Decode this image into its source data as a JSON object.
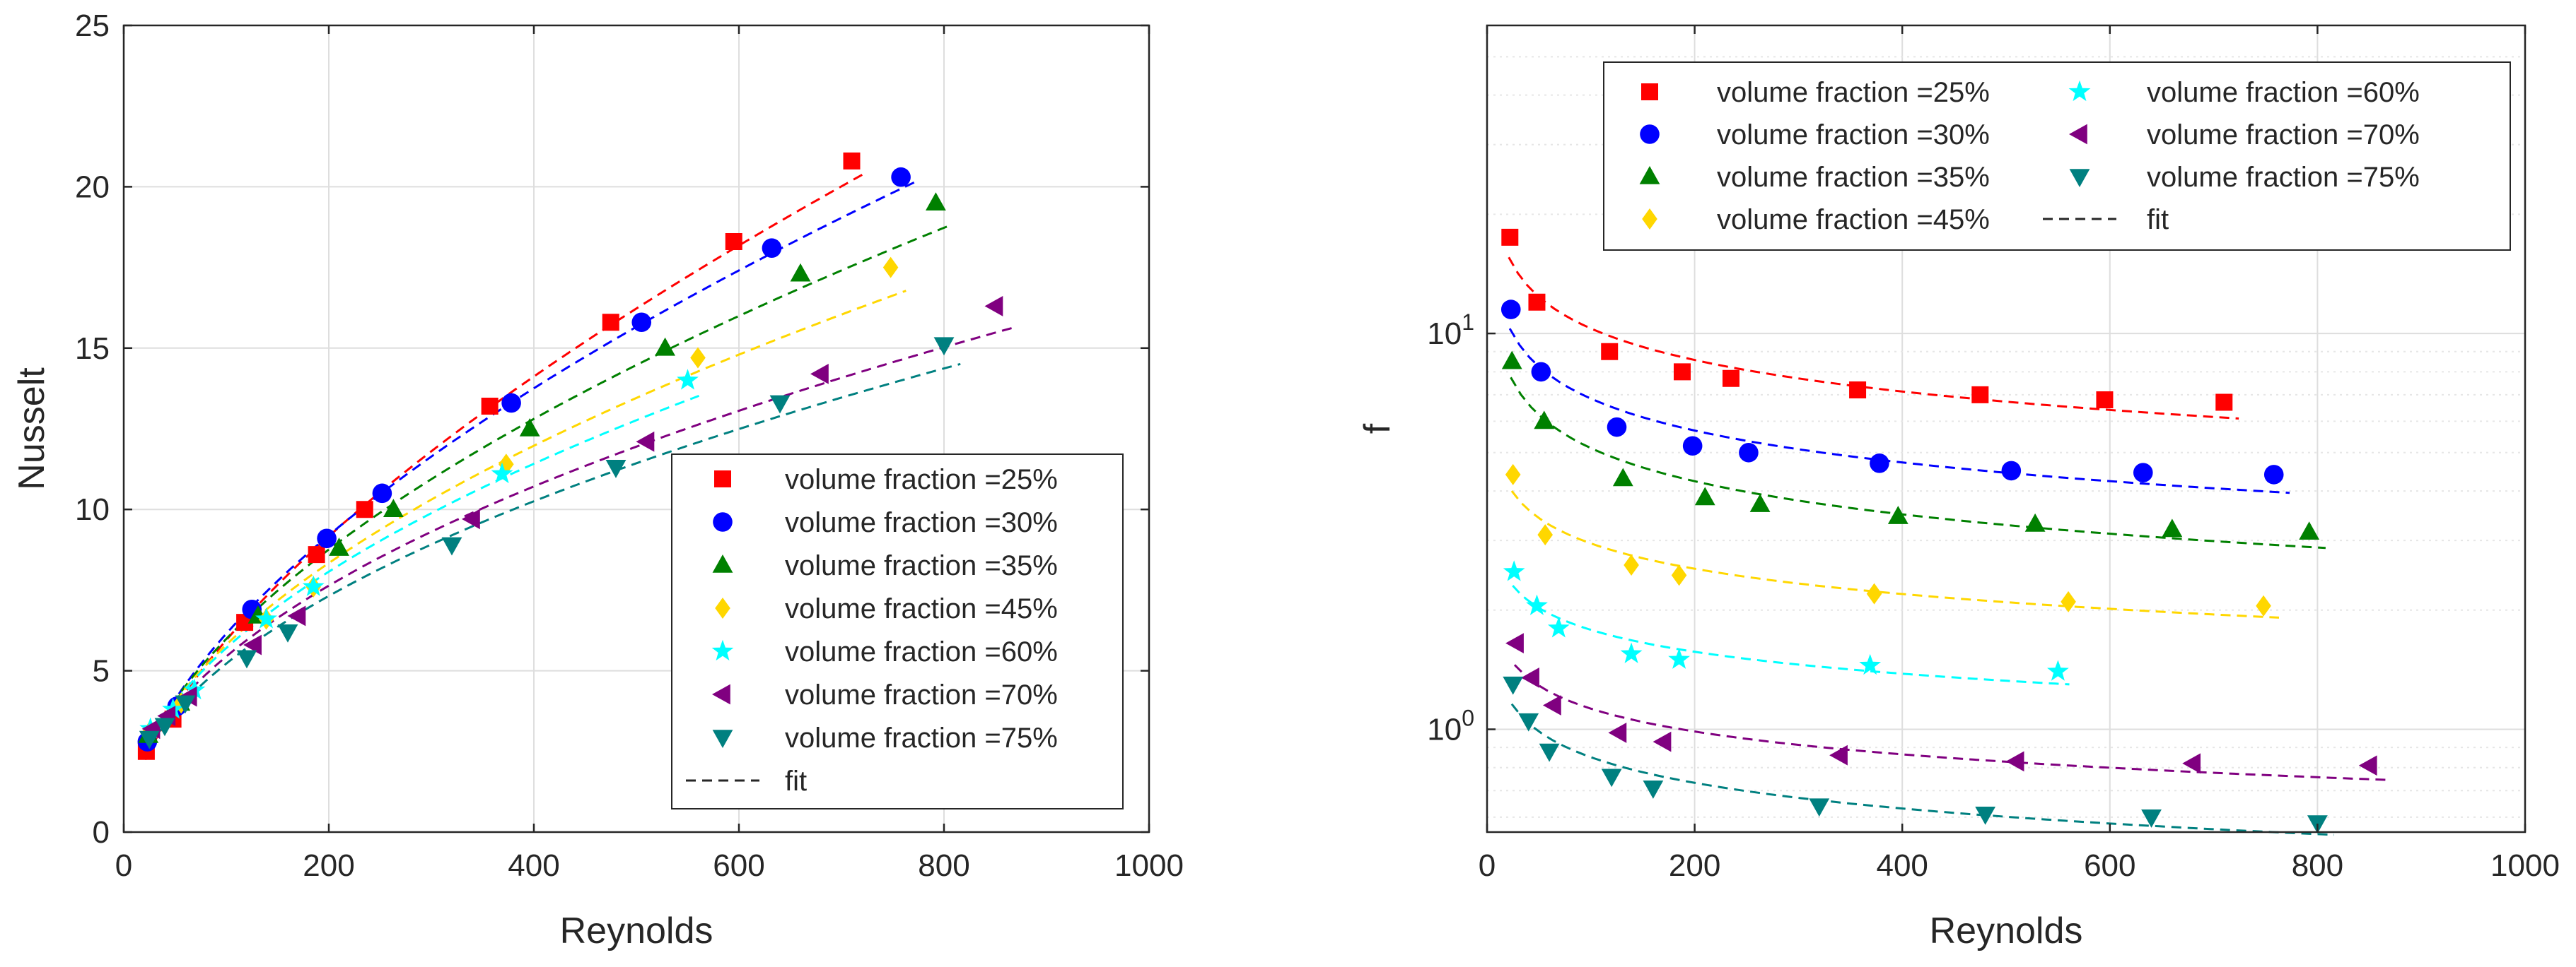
{
  "chart_data": [
    {
      "type": "scatter",
      "title": "",
      "xlabel": "Reynolds",
      "ylabel": "Nusselt",
      "xlim": [
        0,
        1000
      ],
      "ylim": [
        0,
        25
      ],
      "xscale": "linear",
      "yscale": "linear",
      "grid": true,
      "legend_position": "bottom-right",
      "x_ticks": [
        "0",
        "200",
        "400",
        "600",
        "800",
        "1000"
      ],
      "y_ticks": [
        "0",
        "5",
        "10",
        "15",
        "20",
        "25"
      ],
      "fit_label": "fit",
      "series": [
        {
          "name": "volume fraction =25%",
          "color": "#ff0000",
          "marker": "square",
          "x": [
            22,
            48,
            118,
            188,
            235,
            357,
            475,
            595,
            710
          ],
          "y": [
            2.5,
            3.5,
            6.5,
            8.6,
            10.0,
            13.2,
            15.8,
            18.3,
            20.8
          ]
        },
        {
          "name": "volume fraction =30%",
          "color": "#0000ff",
          "marker": "circle",
          "x": [
            23,
            52,
            125,
            198,
            252,
            378,
            505,
            632,
            758
          ],
          "y": [
            2.8,
            3.9,
            6.9,
            9.1,
            10.5,
            13.3,
            15.8,
            18.1,
            20.3
          ]
        },
        {
          "name": "volume fraction =35%",
          "color": "#008000",
          "marker": "triangle-up",
          "x": [
            24,
            55,
            131,
            210,
            263,
            396,
            528,
            660,
            792
          ],
          "y": [
            3.0,
            4.0,
            6.7,
            8.8,
            10.0,
            12.5,
            15.0,
            17.3,
            19.5
          ]
        },
        {
          "name": "volume fraction =45%",
          "color": "#ffd700",
          "marker": "diamond",
          "x": [
            25,
            56,
            139,
            185,
            373,
            560,
            748
          ],
          "y": [
            3.1,
            4.0,
            6.6,
            7.6,
            11.4,
            14.7,
            17.5
          ]
        },
        {
          "name": "volume fraction =60%",
          "color": "#00ffff",
          "marker": "star",
          "x": [
            26,
            48,
            69,
            139,
            185,
            369,
            550
          ],
          "y": [
            3.2,
            3.8,
            4.4,
            6.6,
            7.6,
            11.1,
            14.0
          ]
        },
        {
          "name": "volume fraction =70%",
          "color": "#800080",
          "marker": "triangle-left",
          "x": [
            28,
            43,
            64,
            127,
            170,
            340,
            510,
            680,
            850
          ],
          "y": [
            3.2,
            3.6,
            4.2,
            5.8,
            6.7,
            9.7,
            12.1,
            14.2,
            16.3
          ]
        },
        {
          "name": "volume fraction =75%",
          "color": "#008080",
          "marker": "triangle-down",
          "x": [
            25,
            40,
            60,
            120,
            160,
            320,
            480,
            640,
            800
          ],
          "y": [
            2.9,
            3.3,
            4.0,
            5.4,
            6.2,
            8.9,
            11.3,
            13.3,
            15.1
          ]
        }
      ]
    },
    {
      "type": "scatter",
      "title": "",
      "xlabel": "Reynolds",
      "ylabel": "f",
      "xlim": [
        0,
        1000
      ],
      "ylim": [
        0.55,
        60
      ],
      "xscale": "linear",
      "yscale": "log",
      "grid": true,
      "legend_position": "top",
      "x_ticks": [
        "0",
        "200",
        "400",
        "600",
        "800",
        "1000"
      ],
      "y_ticks": [
        "10^{0}",
        "10^{1}"
      ],
      "fit_label": "fit",
      "series": [
        {
          "name": "volume fraction =25%",
          "color": "#ff0000",
          "marker": "square",
          "x": [
            22,
            48,
            118,
            188,
            235,
            357,
            475,
            595,
            710
          ],
          "y": [
            17.5,
            12.0,
            9.0,
            8.0,
            7.7,
            7.2,
            7.0,
            6.8,
            6.7
          ]
        },
        {
          "name": "volume fraction =30%",
          "color": "#0000ff",
          "marker": "circle",
          "x": [
            23,
            52,
            125,
            198,
            252,
            378,
            505,
            632,
            758
          ],
          "y": [
            11.5,
            8.0,
            5.8,
            5.2,
            5.0,
            4.7,
            4.5,
            4.45,
            4.4
          ]
        },
        {
          "name": "volume fraction =35%",
          "color": "#008000",
          "marker": "triangle-up",
          "x": [
            24,
            55,
            131,
            210,
            263,
            396,
            528,
            660,
            792
          ],
          "y": [
            8.5,
            6.0,
            4.3,
            3.85,
            3.7,
            3.45,
            3.3,
            3.2,
            3.15
          ]
        },
        {
          "name": "volume fraction =45%",
          "color": "#ffd700",
          "marker": "diamond",
          "x": [
            25,
            56,
            139,
            185,
            373,
            560,
            748
          ],
          "y": [
            4.4,
            3.1,
            2.6,
            2.45,
            2.2,
            2.1,
            2.05
          ]
        },
        {
          "name": "volume fraction =60%",
          "color": "#00ffff",
          "marker": "star",
          "x": [
            26,
            48,
            69,
            139,
            185,
            369,
            550
          ],
          "y": [
            2.5,
            2.05,
            1.8,
            1.55,
            1.5,
            1.45,
            1.4
          ]
        },
        {
          "name": "volume fraction =70%",
          "color": "#800080",
          "marker": "triangle-left",
          "x": [
            28,
            43,
            64,
            127,
            170,
            340,
            510,
            680,
            850
          ],
          "y": [
            1.65,
            1.35,
            1.15,
            0.98,
            0.93,
            0.86,
            0.83,
            0.82,
            0.81
          ]
        },
        {
          "name": "volume fraction =75%",
          "color": "#008080",
          "marker": "triangle-down",
          "x": [
            25,
            40,
            60,
            120,
            160,
            320,
            480,
            640,
            800
          ],
          "y": [
            1.3,
            1.05,
            0.88,
            0.76,
            0.71,
            0.64,
            0.61,
            0.6,
            0.58
          ]
        }
      ]
    }
  ]
}
